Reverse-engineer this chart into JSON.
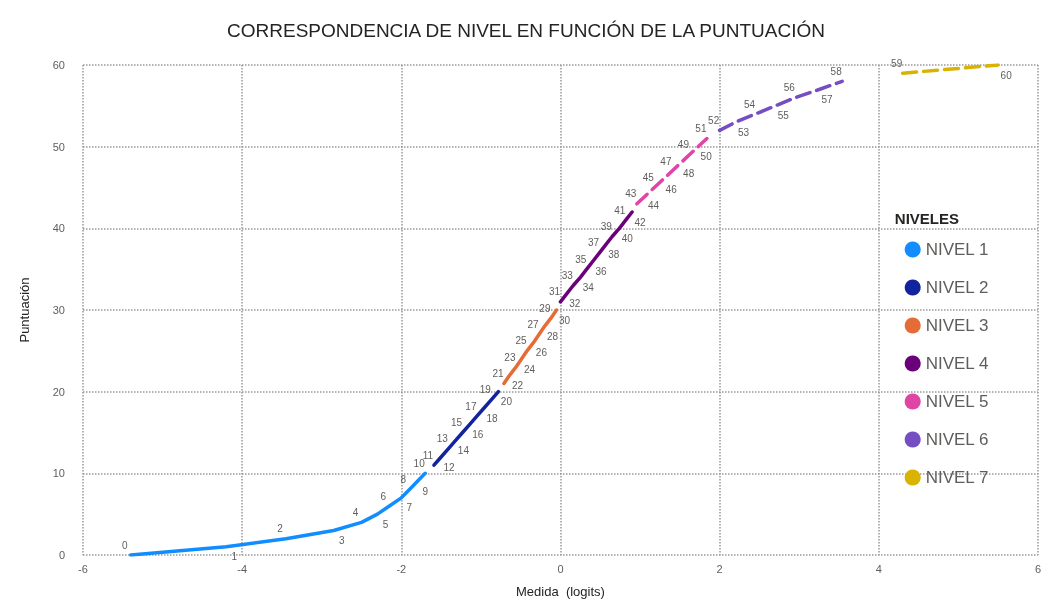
{
  "chart_data": {
    "type": "line",
    "title": "CORRESPONDENCIA DE NIVEL EN FUNCIÓN DE LA PUNTUACIÓN",
    "xlabel": "Medida  (logits)",
    "ylabel": "Puntuación",
    "legend_title": "NIVELES",
    "xlim": [
      -6,
      6
    ],
    "xticks": [
      -6,
      -4,
      -2,
      0,
      2,
      4,
      6
    ],
    "ylim": [
      0,
      60
    ],
    "yticks": [
      0,
      10,
      20,
      30,
      40,
      50,
      60
    ],
    "grid": true,
    "legend": "right",
    "marker": "none",
    "data_labels": true,
    "series": [
      {
        "name": "NIVEL 1",
        "color": "#118dff",
        "line_style": "solid",
        "x": [
          -5.4,
          -4.2,
          -3.45,
          -2.85,
          -2.5,
          -2.3,
          -2.15,
          -2.0,
          -1.9,
          -1.8,
          -1.7
        ],
        "values": [
          0,
          1,
          2,
          3,
          4,
          5,
          6,
          7,
          8,
          9,
          10
        ]
      },
      {
        "name": "NIVEL 2",
        "color": "#12239e",
        "line_style": "solid",
        "x": [
          -1.59,
          -1.5,
          -1.41,
          -1.32,
          -1.23,
          -1.14,
          -1.05,
          -0.96,
          -0.87,
          -0.78
        ],
        "values": [
          11,
          12,
          13,
          14,
          15,
          16,
          17,
          18,
          19,
          20
        ]
      },
      {
        "name": "NIVEL 3",
        "color": "#e66c37",
        "line_style": "solid",
        "x": [
          -0.71,
          -0.64,
          -0.56,
          -0.49,
          -0.42,
          -0.34,
          -0.27,
          -0.2,
          -0.12,
          -0.05
        ],
        "values": [
          21,
          22,
          23,
          24,
          25,
          26,
          27,
          28,
          29,
          30
        ]
      },
      {
        "name": "NIVEL 4",
        "color": "#6b007b",
        "line_style": "solid",
        "x": [
          0,
          0.08,
          0.16,
          0.25,
          0.33,
          0.41,
          0.49,
          0.57,
          0.65,
          0.74,
          0.82,
          0.9
        ],
        "values": [
          31,
          32,
          33,
          34,
          35,
          36,
          37,
          38,
          39,
          40,
          41,
          42
        ]
      },
      {
        "name": "NIVEL 5",
        "color": "#e044a7",
        "line_style": "dashed",
        "x": [
          0.96,
          1.07,
          1.18,
          1.29,
          1.4,
          1.51,
          1.62,
          1.73,
          1.84
        ],
        "values": [
          43,
          44,
          45,
          46,
          47,
          48,
          49,
          50,
          51
        ]
      },
      {
        "name": "NIVEL 6",
        "color": "#744ec2",
        "line_style": "dashed",
        "x": [
          2.0,
          2.2,
          2.45,
          2.7,
          2.95,
          3.25,
          3.54
        ],
        "values": [
          52,
          53,
          54,
          55,
          56,
          57,
          58
        ]
      },
      {
        "name": "NIVEL 7",
        "color": "#d9b300",
        "line_style": "dashed",
        "x": [
          4.3,
          5.5
        ],
        "values": [
          59,
          60
        ]
      }
    ]
  }
}
